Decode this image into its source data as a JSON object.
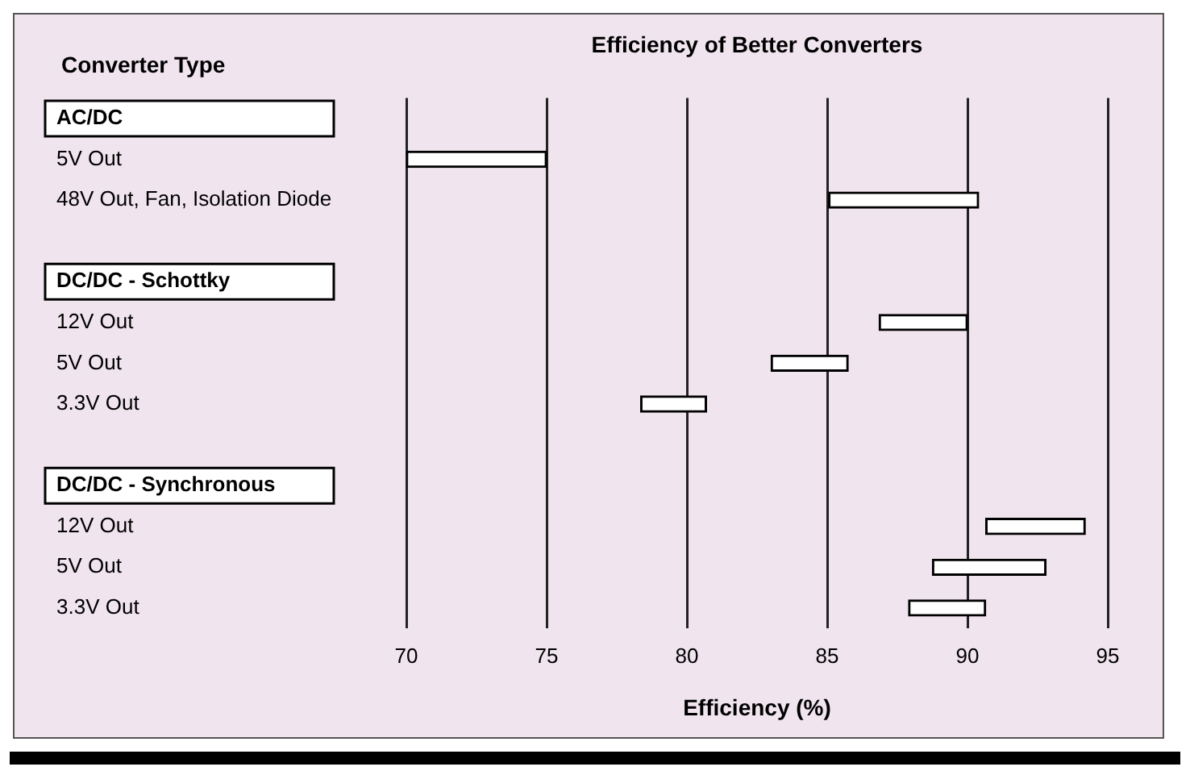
{
  "chart_data": {
    "type": "bar",
    "orientation": "horizontal",
    "title": "Efficiency of Better Converters",
    "ylabel": "Converter Type",
    "xlabel": "Efficiency (%)",
    "categories": [
      "AC/DC",
      "5V Out",
      "48V Out, Fan, Isolation Diode",
      null,
      "DC/DC - Schottky",
      "12V Out",
      "5V Out",
      "3.3V Out",
      null,
      "DC/DC - Synchronous",
      "12V Out",
      "5V Out",
      "3.3V Out"
    ],
    "base": [
      null,
      70,
      85.05,
      null,
      null,
      86.85,
      83.0,
      78.35,
      null,
      null,
      90.65,
      88.75,
      87.9
    ],
    "values": [
      null,
      5,
      5.35,
      null,
      null,
      3.15,
      2.75,
      2.35,
      null,
      null,
      3.55,
      4.05,
      2.75
    ],
    "color": "#ffffff",
    "xlim": [
      70,
      95
    ],
    "xticks": [
      70,
      75,
      80,
      85,
      90,
      95
    ],
    "grid": "x",
    "legend": false
  }
}
